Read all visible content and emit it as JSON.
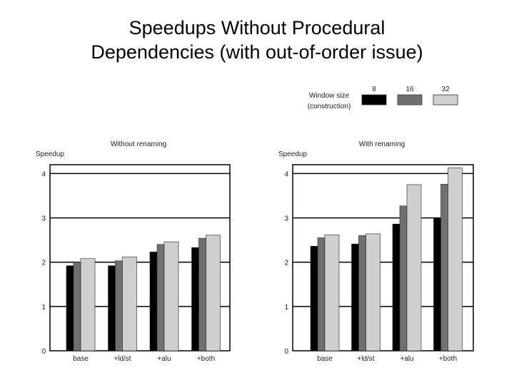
{
  "slide": {
    "title_line1": "Speedups  Without Procedural",
    "title_line2": "Dependencies (with out-of-order issue)"
  },
  "legend": {
    "title_line1": "Window size",
    "title_line2": "(construction)",
    "items": [
      {
        "label": "8",
        "color": "#000000"
      },
      {
        "label": "16",
        "color": "#707070"
      },
      {
        "label": "32",
        "color": "#cfcfcf"
      }
    ]
  },
  "chart_data": [
    {
      "type": "bar",
      "title": "Without renaming",
      "ylabel": "Speedup",
      "xlabel": "",
      "ylim": [
        0,
        4.2
      ],
      "yticks": [
        0,
        1,
        2,
        3,
        4
      ],
      "grid": true,
      "categories": [
        "base",
        "+ld/st",
        "+alu",
        "+both"
      ],
      "series": [
        {
          "name": "8",
          "color": "#000000",
          "values": [
            1.92,
            1.92,
            2.23,
            2.33
          ]
        },
        {
          "name": "16",
          "color": "#707070",
          "values": [
            2.0,
            2.03,
            2.4,
            2.54
          ]
        },
        {
          "name": "32",
          "color": "#cfcfcf",
          "values": [
            2.08,
            2.12,
            2.46,
            2.61
          ]
        }
      ]
    },
    {
      "type": "bar",
      "title": "With renaming",
      "ylabel": "Speedup",
      "xlabel": "",
      "ylim": [
        0,
        4.2
      ],
      "yticks": [
        0,
        1,
        2,
        3,
        4
      ],
      "grid": true,
      "categories": [
        "base",
        "+ld/st",
        "+alu",
        "+both"
      ],
      "series": [
        {
          "name": "8",
          "color": "#000000",
          "values": [
            2.36,
            2.41,
            2.86,
            3.0
          ]
        },
        {
          "name": "16",
          "color": "#707070",
          "values": [
            2.55,
            2.6,
            3.27,
            3.76
          ]
        },
        {
          "name": "32",
          "color": "#cfcfcf",
          "values": [
            2.62,
            2.64,
            3.75,
            4.13
          ]
        }
      ]
    }
  ]
}
